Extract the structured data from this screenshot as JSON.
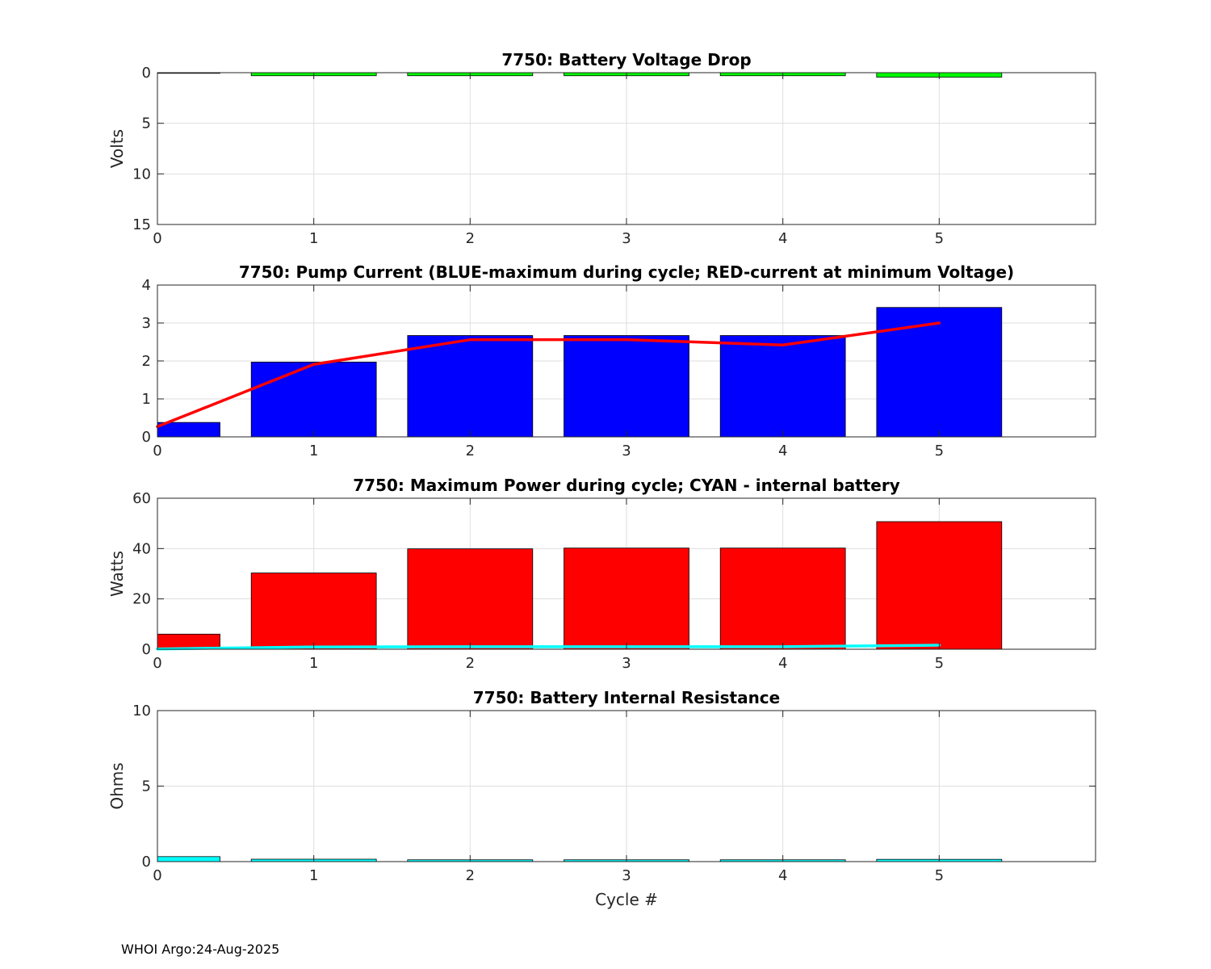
{
  "chart_data": [
    {
      "type": "bar",
      "title": "7750: Battery Voltage Drop",
      "xlabel": "",
      "ylabel": "Volts",
      "xlim": [
        0,
        6
      ],
      "ylim": [
        0,
        15
      ],
      "y_reversed": true,
      "xticks": [
        "0",
        "1",
        "2",
        "3",
        "4",
        "5"
      ],
      "yticks": [
        "0",
        "5",
        "10",
        "15"
      ],
      "grid": true,
      "bar_color": "#00ff00",
      "bars": [
        {
          "x": 0,
          "value": 0.05
        },
        {
          "x": 1,
          "value": 0.3
        },
        {
          "x": 2,
          "value": 0.3
        },
        {
          "x": 3,
          "value": 0.3
        },
        {
          "x": 4,
          "value": 0.3
        },
        {
          "x": 5,
          "value": 0.45
        }
      ]
    },
    {
      "type": "bar",
      "title": "7750: Pump Current (BLUE-maximum during cycle; RED-current at minimum Voltage)",
      "xlabel": "",
      "ylabel": "",
      "xlim": [
        0,
        6
      ],
      "ylim": [
        0,
        4
      ],
      "y_reversed": false,
      "xticks": [
        "0",
        "1",
        "2",
        "3",
        "4",
        "5"
      ],
      "yticks": [
        "0",
        "1",
        "2",
        "3",
        "4"
      ],
      "grid": true,
      "bar_color": "#0000ff",
      "bars": [
        {
          "x": 0,
          "value": 0.38
        },
        {
          "x": 1,
          "value": 1.97
        },
        {
          "x": 2,
          "value": 2.67
        },
        {
          "x": 3,
          "value": 2.67
        },
        {
          "x": 4,
          "value": 2.67
        },
        {
          "x": 5,
          "value": 3.41
        }
      ],
      "line": {
        "color": "#ff0000",
        "x": [
          0,
          1,
          2,
          3,
          4,
          5
        ],
        "values": [
          0.27,
          1.91,
          2.56,
          2.56,
          2.42,
          3.0
        ]
      }
    },
    {
      "type": "bar",
      "title": "7750: Maximum Power during cycle; CYAN - internal battery",
      "xlabel": "",
      "ylabel": "Watts",
      "xlim": [
        0,
        6
      ],
      "ylim": [
        0,
        60
      ],
      "y_reversed": false,
      "xticks": [
        "0",
        "1",
        "2",
        "3",
        "4",
        "5"
      ],
      "yticks": [
        "0",
        "20",
        "40",
        "60"
      ],
      "grid": true,
      "bar_color": "#ff0000",
      "bars": [
        {
          "x": 0,
          "value": 6.0
        },
        {
          "x": 1,
          "value": 30.3
        },
        {
          "x": 2,
          "value": 39.9
        },
        {
          "x": 3,
          "value": 40.2
        },
        {
          "x": 4,
          "value": 40.2
        },
        {
          "x": 5,
          "value": 50.7
        }
      ],
      "line": {
        "color": "#00ffff",
        "x": [
          0,
          1,
          2,
          3,
          4,
          5
        ],
        "values": [
          0.1,
          0.9,
          1.0,
          1.0,
          1.0,
          1.6
        ]
      }
    },
    {
      "type": "bar",
      "title": "7750: Battery Internal Resistance",
      "xlabel": "Cycle #",
      "ylabel": "Ohms",
      "xlim": [
        0,
        6
      ],
      "ylim": [
        0,
        10
      ],
      "y_reversed": false,
      "xticks": [
        "0",
        "1",
        "2",
        "3",
        "4",
        "5"
      ],
      "yticks": [
        "0",
        "5",
        "10"
      ],
      "grid": true,
      "bar_color": "#00ffff",
      "bars": [
        {
          "x": 0,
          "value": 0.33
        },
        {
          "x": 1,
          "value": 0.16
        },
        {
          "x": 2,
          "value": 0.12
        },
        {
          "x": 3,
          "value": 0.12
        },
        {
          "x": 4,
          "value": 0.12
        },
        {
          "x": 5,
          "value": 0.15
        }
      ]
    }
  ],
  "footer": {
    "text": "WHOI Argo:24-Aug-2025"
  }
}
